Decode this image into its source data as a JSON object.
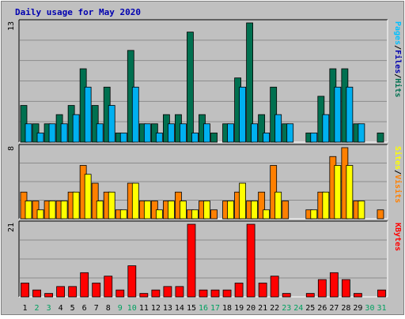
{
  "title": "Daily usage for May 2020",
  "colors": {
    "frame_bg": "#c0c0c0",
    "plot_bg": "#c0c0c0",
    "grid": "#8c8c8c",
    "title": "#0000b0",
    "hits": "#007050",
    "files": "#00b0f0",
    "pages": "#00c0ff",
    "visits": "#ff8000",
    "sites": "#ffff00",
    "kbytes": "#ff0000",
    "weekend_label": "#00a060",
    "weekday_label": "#000000",
    "slash": "#000000"
  },
  "chart_data": {
    "type": "bar",
    "categories": [
      "1",
      "2",
      "3",
      "4",
      "5",
      "6",
      "7",
      "8",
      "9",
      "10",
      "11",
      "12",
      "13",
      "14",
      "15",
      "16",
      "17",
      "18",
      "19",
      "20",
      "21",
      "22",
      "23",
      "24",
      "25",
      "26",
      "27",
      "28",
      "29",
      "30",
      "31"
    ],
    "weekend_days": [
      "2",
      "3",
      "9",
      "10",
      "16",
      "17",
      "23",
      "24",
      "30",
      "31"
    ],
    "panels": [
      {
        "max_label": "13",
        "ylim": [
          0,
          13
        ],
        "legend": [
          {
            "text": "Pages",
            "color_key": "pages"
          },
          {
            "text": "/",
            "color_key": "slash"
          },
          {
            "text": "Files",
            "color_key": "title"
          },
          {
            "text": "/",
            "color_key": "slash"
          },
          {
            "text": "Hits",
            "color_key": "hits"
          }
        ],
        "series": [
          {
            "name": "Hits",
            "color_key": "hits",
            "values": [
              4,
              2,
              2,
              3,
              4,
              8,
              4,
              6,
              1,
              10,
              2,
              2,
              3,
              3,
              12,
              3,
              1,
              2,
              7,
              13,
              3,
              6,
              2,
              0,
              1,
              5,
              8,
              8,
              2,
              0,
              1
            ]
          },
          {
            "name": "Files",
            "color_key": "files",
            "values": [
              2,
              1,
              2,
              2,
              3,
              6,
              2,
              4,
              1,
              6,
              2,
              1,
              2,
              2,
              1,
              2,
              0,
              2,
              6,
              2,
              1,
              3,
              2,
              0,
              1,
              3,
              6,
              6,
              2,
              0,
              0
            ]
          }
        ]
      },
      {
        "max_label": "8",
        "ylim": [
          0,
          8
        ],
        "legend": [
          {
            "text": "Sites",
            "color_key": "sites"
          },
          {
            "text": "/",
            "color_key": "slash"
          },
          {
            "text": "Visits",
            "color_key": "visits"
          }
        ],
        "series": [
          {
            "name": "Visits",
            "color_key": "visits",
            "values": [
              3,
              2,
              2,
              2,
              3,
              6,
              4,
              3,
              1,
              4,
              2,
              2,
              2,
              3,
              1,
              2,
              1,
              2,
              3,
              2,
              3,
              6,
              2,
              0,
              1,
              3,
              7,
              8,
              2,
              0,
              1
            ]
          },
          {
            "name": "Sites",
            "color_key": "sites",
            "values": [
              2,
              1,
              2,
              2,
              3,
              5,
              2,
              3,
              1,
              4,
              2,
              1,
              2,
              2,
              1,
              2,
              0,
              2,
              4,
              2,
              1,
              3,
              0,
              0,
              1,
              3,
              6,
              6,
              2,
              0,
              0
            ]
          }
        ]
      },
      {
        "max_label": "21",
        "ylim": [
          0,
          21
        ],
        "legend": [
          {
            "text": "KBytes",
            "color_key": "kbytes"
          }
        ],
        "series": [
          {
            "name": "KBytes",
            "color_key": "kbytes",
            "values": [
              4,
              2,
              1,
              3,
              3,
              7,
              4,
              6,
              2,
              9,
              1,
              2,
              3,
              3,
              21,
              2,
              2,
              2,
              4,
              21,
              4,
              6,
              1,
              0,
              1,
              5,
              7,
              5,
              1,
              0,
              2
            ]
          }
        ]
      }
    ]
  }
}
